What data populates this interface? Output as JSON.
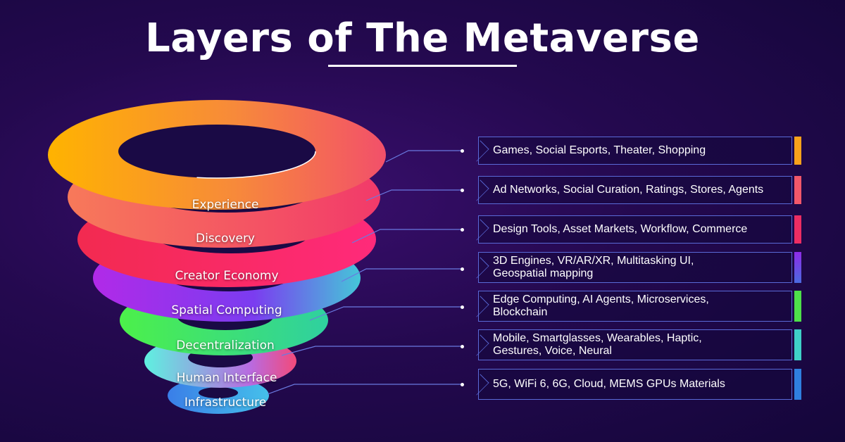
{
  "title": "Layers of The Metaverse",
  "layers": [
    {
      "name": "Experience",
      "details": "Games, Social Esports, Theater, Shopping",
      "color": "#f7a21b"
    },
    {
      "name": "Discovery",
      "details": "Ad Networks, Social Curation, Ratings, Stores, Agents",
      "color": "#f2576a"
    },
    {
      "name": "Creator Economy",
      "details": "Design Tools, Asset Markets, Workflow, Commerce",
      "color": "#ec2d63"
    },
    {
      "name": "Spatial Computing",
      "details": "3D Engines, VR/AR/XR, Multitasking  UI,\nGeospatial mapping",
      "color": "#8f2be8"
    },
    {
      "name": "Decentralization",
      "details": "Edge Computing, AI Agents, Microservices,\nBlockchain",
      "color": "#4ee04a"
    },
    {
      "name": "Human Interface",
      "details": "Mobile, Smartglasses, Wearables, Haptic,\nGestures, Voice, Neural",
      "color": "#3fd0c8"
    },
    {
      "name": "Infrastructure",
      "details": "5G, WiFi 6, 6G, Cloud, MEMS GPUs Materials",
      "color": "#2f7fe0"
    }
  ]
}
